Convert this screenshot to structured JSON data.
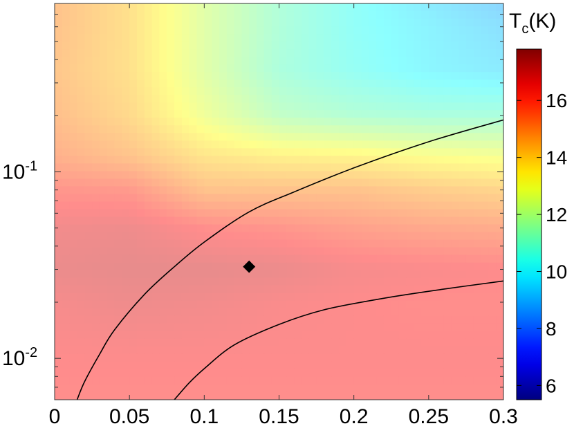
{
  "chart_data": {
    "type": "heatmap",
    "title": "",
    "xlabel": "",
    "ylabel": "",
    "xlim": [
      0,
      0.3
    ],
    "ylim": [
      0.006,
      0.8
    ],
    "y_scale": "log",
    "x_ticks": [
      0,
      0.05,
      0.1,
      0.15,
      0.2,
      0.25,
      0.3
    ],
    "x_tick_labels": [
      "0",
      "0.05",
      "0.1",
      "0.15",
      "0.2",
      "0.25",
      "0.3"
    ],
    "y_ticks": [
      0.01,
      0.1
    ],
    "y_tick_labels": [
      {
        "base": "10",
        "exp": "-2"
      },
      {
        "base": "10",
        "exp": "-1"
      }
    ],
    "colorbar": {
      "label_main": "T",
      "label_sub": "c",
      "label_unit": "(K)",
      "range": [
        5.5,
        17.8
      ],
      "ticks": [
        6,
        8,
        10,
        12,
        14,
        16
      ],
      "colormap": "jet"
    },
    "surface_alpha": 0.45,
    "heat_grid": {
      "x": [
        0,
        0.05,
        0.1,
        0.15,
        0.2,
        0.25,
        0.3
      ],
      "y": [
        0.006,
        0.01,
        0.02,
        0.03,
        0.05,
        0.08,
        0.12,
        0.2,
        0.35,
        0.6,
        0.8
      ],
      "tc": [
        [
          16.2,
          16.2,
          16.2,
          16.2,
          16.2,
          16.2,
          16.2
        ],
        [
          16.3,
          16.3,
          16.3,
          16.3,
          16.3,
          16.3,
          16.3
        ],
        [
          16.5,
          16.7,
          16.6,
          16.4,
          16.3,
          16.2,
          16.2
        ],
        [
          16.8,
          16.9,
          16.9,
          16.8,
          16.5,
          16.4,
          16.3
        ],
        [
          16.6,
          16.7,
          16.2,
          16.0,
          15.7,
          15.5,
          15.4
        ],
        [
          16.0,
          15.9,
          14.8,
          14.8,
          14.8,
          14.5,
          14.3
        ],
        [
          15.3,
          14.8,
          13.9,
          13.6,
          13.5,
          13.2,
          13.0
        ],
        [
          14.9,
          14.2,
          12.8,
          11.6,
          11.2,
          11.0,
          11.0
        ],
        [
          14.7,
          14.0,
          12.4,
          11.0,
          10.4,
          9.9,
          9.6
        ],
        [
          14.8,
          14.0,
          12.4,
          11.1,
          10.3,
          9.8,
          9.3
        ],
        [
          14.8,
          14.0,
          12.4,
          11.1,
          10.3,
          9.6,
          9.0
        ]
      ]
    },
    "curves": [
      {
        "x": [
          0.015,
          0.02,
          0.03,
          0.04,
          0.06,
          0.08,
          0.1,
          0.13,
          0.16,
          0.2,
          0.25,
          0.3
        ],
        "y": [
          0.006,
          0.0075,
          0.0105,
          0.0142,
          0.022,
          0.031,
          0.042,
          0.061,
          0.078,
          0.105,
          0.145,
          0.19
        ]
      },
      {
        "x": [
          0.08,
          0.09,
          0.1,
          0.12,
          0.15,
          0.18,
          0.22,
          0.26,
          0.3
        ],
        "y": [
          0.006,
          0.0074,
          0.0088,
          0.0118,
          0.0152,
          0.0182,
          0.021,
          0.0235,
          0.026
        ]
      }
    ],
    "marker": {
      "x": 0.13,
      "y": 0.031,
      "shape": "diamond"
    }
  }
}
